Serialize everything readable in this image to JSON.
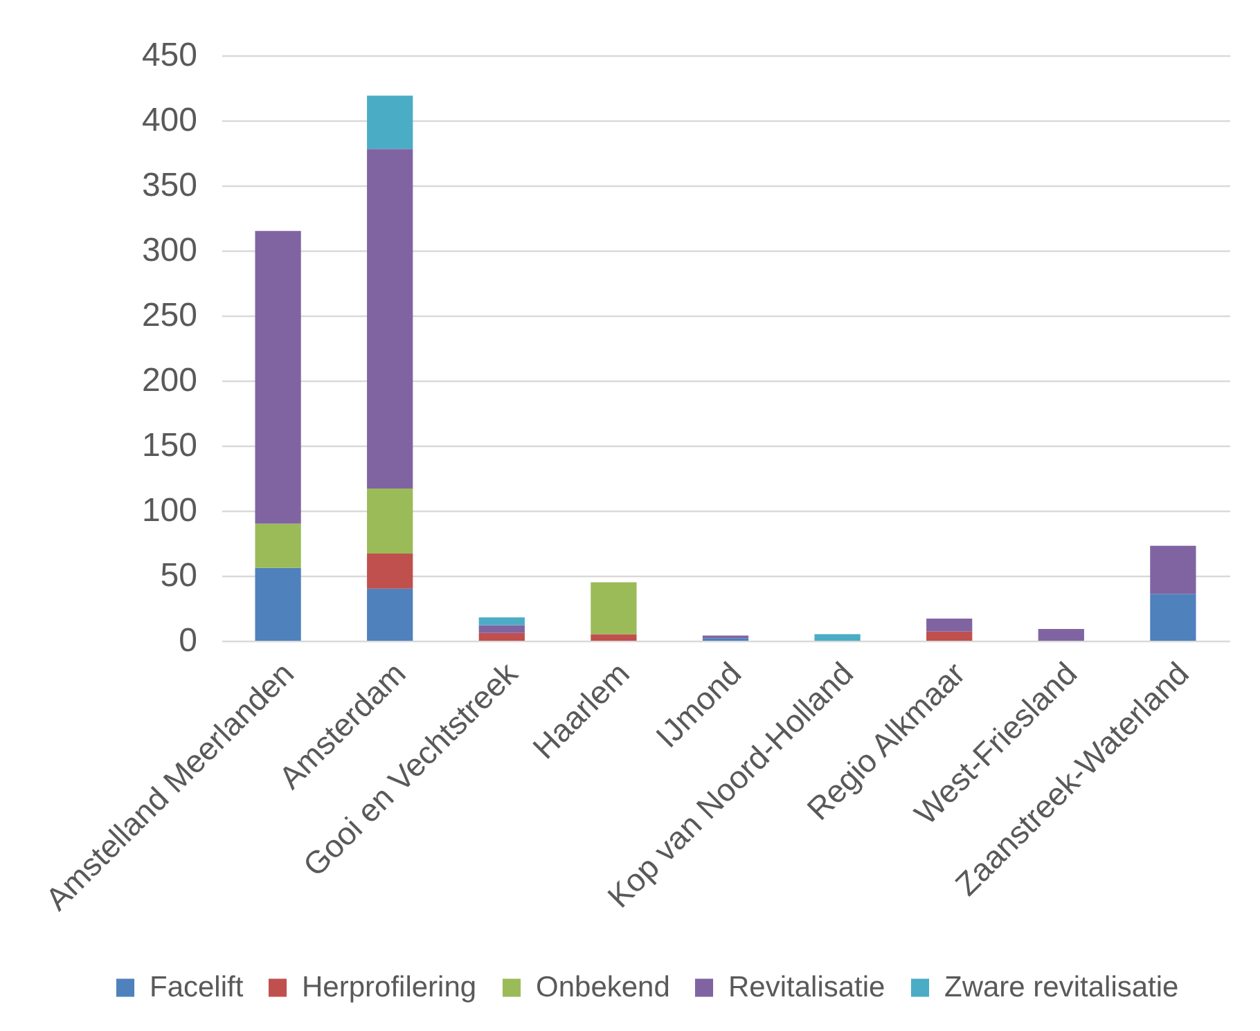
{
  "chart_data": {
    "type": "bar",
    "stacked": true,
    "categories": [
      "Amstelland Meerlanden",
      "Amsterdam",
      "Gooi en Vechtstreek",
      "Haarlem",
      "IJmond",
      "Kop van Noord-Holland",
      "Regio Alkmaar",
      "West-Friesland",
      "Zaanstreek-Waterland"
    ],
    "series": [
      {
        "name": "Facelift",
        "color": "#4f81bd",
        "values": [
          56,
          40,
          0,
          0,
          2,
          0,
          0,
          0,
          36
        ]
      },
      {
        "name": "Herprofilering",
        "color": "#c0504d",
        "values": [
          0,
          27,
          6,
          5,
          0,
          0,
          7,
          0,
          0
        ]
      },
      {
        "name": "Onbekend",
        "color": "#9bbb59",
        "values": [
          34,
          50,
          0,
          40,
          0,
          0,
          0,
          0,
          0
        ]
      },
      {
        "name": "Revitalisatie",
        "color": "#8064a2",
        "values": [
          225,
          261,
          6,
          0,
          2,
          0,
          10,
          9,
          37
        ]
      },
      {
        "name": "Zware revitalisatie",
        "color": "#4bacc6",
        "values": [
          0,
          41,
          6,
          0,
          0,
          5,
          0,
          0,
          0
        ]
      }
    ],
    "ylim": [
      0,
      450
    ],
    "yticks": [
      0,
      50,
      100,
      150,
      200,
      250,
      300,
      350,
      400,
      450
    ],
    "grid": "y",
    "legend": "bottom"
  }
}
